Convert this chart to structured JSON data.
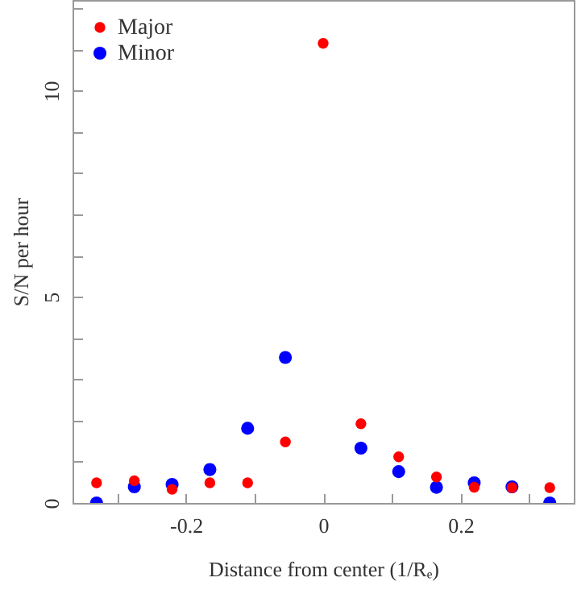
{
  "chart_data": {
    "type": "scatter",
    "xlabel": "Distance from center (1/Rₑ)",
    "ylabel": "S/N per hour",
    "x": [
      -0.33,
      -0.275,
      -0.22,
      -0.165,
      -0.11,
      -0.055,
      0,
      0.055,
      0.11,
      0.165,
      0.22,
      0.275,
      0.33
    ],
    "series": [
      {
        "name": "Major",
        "color": "#ff0000",
        "values": [
          0.49,
          0.54,
          0.33,
          0.49,
          0.49,
          1.48,
          11.15,
          1.92,
          1.12,
          0.63,
          0.38,
          0.37,
          0.37
        ]
      },
      {
        "name": "Minor",
        "color": "#0000ff",
        "values": [
          0,
          0.39,
          0.45,
          0.81,
          1.81,
          3.53,
          null,
          1.33,
          0.76,
          0.38,
          0.49,
          0.39,
          0
        ]
      }
    ],
    "xlim": [
      -0.365,
      0.365
    ],
    "ylim": [
      0,
      12.2
    ],
    "xticks": [
      {
        "value": -0.3,
        "label": null
      },
      -0.2,
      {
        "value": -0.1,
        "label": null
      },
      0,
      {
        "value": 0.1,
        "label": null
      },
      0.2,
      {
        "value": 0.3,
        "label": null
      }
    ],
    "yticks": [
      0,
      {
        "value": 1,
        "label": null
      },
      {
        "value": 2,
        "label": null
      },
      {
        "value": 3,
        "label": null
      },
      {
        "value": 4,
        "label": null
      },
      5,
      {
        "value": 6,
        "label": null
      },
      {
        "value": 7,
        "label": null
      },
      {
        "value": 8,
        "label": null
      },
      {
        "value": 9,
        "label": null
      },
      10,
      {
        "value": 11,
        "label": null
      },
      {
        "value": 12,
        "label": null
      }
    ],
    "marker": "circle",
    "legend": "top left",
    "grid": false
  }
}
